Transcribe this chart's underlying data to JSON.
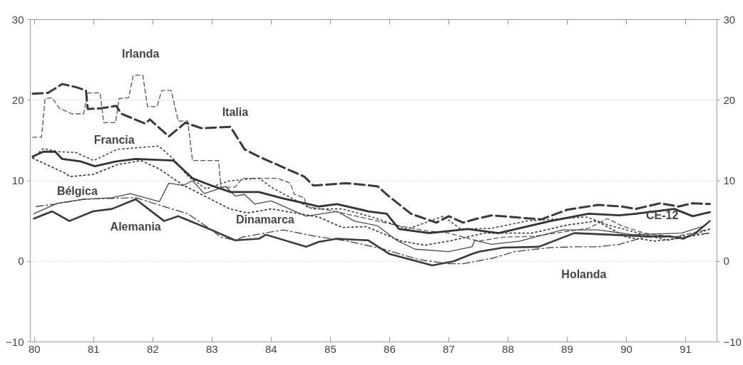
{
  "chart_data": {
    "type": "line",
    "xlim": [
      1979.93,
      1991.53
    ],
    "ylim": [
      -10,
      30
    ],
    "y2lim": [
      -10,
      30
    ],
    "xticks": [
      {
        "value": 1980,
        "label": "80"
      },
      {
        "value": 1981,
        "label": "81"
      },
      {
        "value": 1982,
        "label": "82"
      },
      {
        "value": 1983,
        "label": "83"
      },
      {
        "value": 1984,
        "label": "84"
      },
      {
        "value": 1985,
        "label": "85"
      },
      {
        "value": 1986,
        "label": "86"
      },
      {
        "value": 1987,
        "label": "87"
      },
      {
        "value": 1988,
        "label": "88"
      },
      {
        "value": 1989,
        "label": "89"
      },
      {
        "value": 1990,
        "label": "90"
      },
      {
        "value": 1991,
        "label": "91"
      }
    ],
    "yticks": [
      -10,
      0,
      10,
      20,
      30
    ],
    "y2ticks": [
      -10,
      0,
      10,
      20,
      30
    ],
    "grid": "y",
    "series": [
      {
        "name": "Irlanda",
        "color": "#555555",
        "line_style": "dashed",
        "x": [
          1979.97,
          1980.12,
          1980.18,
          1980.3,
          1980.42,
          1980.63,
          1980.83,
          1980.9,
          1981.11,
          1981.17,
          1981.37,
          1981.43,
          1981.59,
          1981.67,
          1981.83,
          1981.91,
          1982.07,
          1982.15,
          1982.31,
          1982.43,
          1982.59,
          1982.67,
          1983.11,
          1983.15,
          1983.39,
          1983.51,
          1983.79,
          1984.11,
          1984.32,
          1984.39,
          1984.56,
          1984.59,
          1985.0,
          1985.5,
          1986.1,
          1986.6,
          1987.0,
          1987.5,
          1987.92,
          1988.44,
          1989.36,
          1989.68,
          1989.92,
          1990.3,
          1990.8,
          1991.41
        ],
        "values": [
          15.4,
          15.4,
          20.2,
          20.3,
          19.0,
          18.3,
          18.3,
          20.9,
          20.9,
          17.2,
          17.2,
          20.2,
          20.3,
          23.1,
          23.1,
          19.2,
          19.2,
          21.2,
          21.2,
          17.4,
          17.4,
          12.5,
          12.5,
          9.2,
          9.2,
          10.3,
          10.3,
          10.3,
          9.7,
          8.3,
          7.9,
          6.8,
          6.3,
          5.5,
          4.5,
          3.8,
          3.5,
          2.5,
          3.0,
          3.1,
          4.1,
          5.3,
          4.4,
          3.5,
          3.0,
          4.0
        ]
      },
      {
        "name": "Italia",
        "color": "#3a3a3a",
        "line_style": "dashed",
        "x": [
          1979.97,
          1980.23,
          1980.47,
          1980.71,
          1980.87,
          1980.9,
          1981.14,
          1981.38,
          1981.47,
          1981.87,
          1981.95,
          1982.27,
          1982.55,
          1982.83,
          1983.31,
          1983.55,
          1983.79,
          1984.56,
          1984.71,
          1985.28,
          1985.8,
          1985.95,
          1986.36,
          1986.79,
          1987.0,
          1987.24,
          1987.48,
          1987.72,
          1988.56,
          1989.0,
          1989.52,
          1989.92,
          1990.16,
          1990.57,
          1990.88,
          1991.12,
          1991.41
        ],
        "values": [
          20.8,
          20.9,
          22.0,
          21.6,
          21.2,
          18.9,
          19.0,
          19.3,
          18.3,
          17.1,
          17.6,
          15.5,
          17.2,
          16.5,
          16.7,
          13.9,
          13.0,
          10.5,
          9.4,
          9.7,
          9.3,
          8.3,
          5.9,
          4.8,
          5.6,
          4.8,
          5.3,
          5.7,
          5.2,
          6.4,
          7.0,
          6.8,
          6.5,
          7.2,
          6.8,
          7.2,
          7.1
        ]
      },
      {
        "name": "Francia",
        "color": "#444444",
        "line_style": "dotted",
        "x": [
          1979.97,
          1980.15,
          1980.4,
          1980.7,
          1981.0,
          1981.4,
          1981.75,
          1982.1,
          1982.35,
          1982.6,
          1982.9,
          1983.3,
          1983.8,
          1984.0,
          1984.3,
          1984.7,
          1985.2,
          1985.7,
          1986.3,
          1986.91,
          1987.2,
          1987.72,
          1988.32,
          1989.32,
          1989.7,
          1990.2,
          1990.69,
          1991.0,
          1991.41
        ],
        "values": [
          12.8,
          14.0,
          13.6,
          13.5,
          12.5,
          13.9,
          14.1,
          14.3,
          12.7,
          10.5,
          9.0,
          10.0,
          10.3,
          9.2,
          8.0,
          6.5,
          6.5,
          5.5,
          4.0,
          5.6,
          4.0,
          4.1,
          5.0,
          5.5,
          4.5,
          3.5,
          2.6,
          3.0,
          3.5
        ]
      },
      {
        "name": "Bélgica",
        "color": "#4a4a4a",
        "line_style": "solid",
        "x": [
          1979.99,
          1980.39,
          1980.83,
          1981.31,
          1981.62,
          1982.11,
          1982.27,
          1982.51,
          1982.67,
          1982.87,
          1983.23,
          1983.39,
          1983.55,
          1983.72,
          1984.0,
          1984.59,
          1985.11,
          1985.4,
          1985.8,
          1986.12,
          1986.43,
          1987.0,
          1987.39,
          1987.44,
          1987.72,
          1988.2,
          1988.92,
          1989.52,
          1990.12,
          1990.93,
          1991.32
        ],
        "values": [
          5.9,
          7.2,
          7.7,
          7.9,
          8.4,
          7.4,
          9.7,
          9.4,
          10.0,
          8.4,
          9.3,
          8.1,
          8.3,
          7.1,
          7.5,
          5.6,
          6.2,
          5.0,
          4.4,
          2.6,
          1.5,
          1.2,
          1.8,
          2.6,
          2.1,
          2.5,
          3.9,
          3.9,
          3.3,
          3.5,
          4.4
        ]
      },
      {
        "name": "Alemania",
        "color": "#3a3a3a",
        "line_style": "solid",
        "x": [
          1979.99,
          1980.3,
          1980.59,
          1980.99,
          1981.31,
          1981.71,
          1982.19,
          1982.43,
          1982.99,
          1983.39,
          1983.79,
          1983.91,
          1984.59,
          1984.8,
          1985.11,
          1985.64,
          1986.0,
          1986.72,
          1987.08,
          1987.39,
          1987.51,
          1987.92,
          1988.52,
          1989.12,
          1989.73,
          1990.33,
          1990.73,
          1990.96,
          1991.17,
          1991.41
        ],
        "values": [
          5.3,
          6.2,
          5.0,
          6.2,
          6.5,
          7.7,
          5.0,
          5.6,
          3.9,
          2.6,
          2.8,
          3.3,
          1.8,
          2.4,
          2.8,
          2.6,
          0.9,
          -0.5,
          0.0,
          0.9,
          1.2,
          1.7,
          1.8,
          3.5,
          3.3,
          3.1,
          3.1,
          2.8,
          3.5,
          5.0
        ]
      },
      {
        "name": "Dinamarca",
        "color": "#444444",
        "line_style": "dotted",
        "x": [
          1979.97,
          1980.5,
          1980.6,
          1981.0,
          1981.4,
          1981.8,
          1982.1,
          1982.5,
          1982.9,
          1983.3,
          1983.6,
          1984.0,
          1984.4,
          1984.8,
          1985.2,
          1985.6,
          1986.2,
          1986.6,
          1987.0,
          1987.6,
          1988.4,
          1989.0,
          1989.5,
          1990.0,
          1990.5,
          1991.0,
          1991.41
        ],
        "values": [
          12.8,
          11.0,
          10.5,
          10.8,
          12.0,
          12.5,
          11.5,
          9.5,
          8.0,
          6.5,
          6.0,
          6.5,
          6.0,
          5.5,
          4.2,
          4.3,
          2.5,
          2.0,
          2.5,
          3.5,
          3.5,
          4.5,
          5.0,
          3.0,
          2.5,
          3.0,
          4.0
        ]
      },
      {
        "name": "Holanda",
        "color": "#4a4a4a",
        "line_style": "dashdot",
        "x": [
          1980.03,
          1980.35,
          1980.83,
          1981.71,
          1982.19,
          1982.59,
          1982.99,
          1983.15,
          1983.39,
          1983.51,
          1984.2,
          1984.75,
          1985.3,
          1985.9,
          1986.5,
          1987.0,
          1987.24,
          1987.75,
          1988.11,
          1988.72,
          1989.12,
          1989.52,
          1989.88,
          1990.3,
          1990.8,
          1991.41
        ],
        "values": [
          6.8,
          7.1,
          7.7,
          7.9,
          6.8,
          5.9,
          3.9,
          3.0,
          2.6,
          3.0,
          3.9,
          3.1,
          2.5,
          1.5,
          0.2,
          -0.3,
          -0.3,
          0.4,
          1.2,
          1.7,
          1.8,
          1.8,
          2.1,
          3.0,
          3.0,
          3.5
        ]
      },
      {
        "name": "CE-12",
        "color": "#333333",
        "line_style": "solid",
        "x": [
          1979.97,
          1980.15,
          1980.35,
          1980.47,
          1980.78,
          1981.02,
          1981.38,
          1981.71,
          1982.35,
          1982.67,
          1982.99,
          1983.31,
          1983.79,
          1984.2,
          1984.8,
          1985.11,
          1985.64,
          1985.95,
          1986.16,
          1986.67,
          1987.32,
          1987.84,
          1988.72,
          1989.36,
          1989.88,
          1990.16,
          1990.81,
          1991.12,
          1991.41
        ],
        "values": [
          13.0,
          13.6,
          13.6,
          12.7,
          12.4,
          11.8,
          12.4,
          12.7,
          12.5,
          10.3,
          9.4,
          8.6,
          8.6,
          7.8,
          6.8,
          7.1,
          6.2,
          5.9,
          4.0,
          3.5,
          4.0,
          3.5,
          5.0,
          5.9,
          5.7,
          5.9,
          6.5,
          5.6,
          6.1
        ]
      }
    ]
  }
}
